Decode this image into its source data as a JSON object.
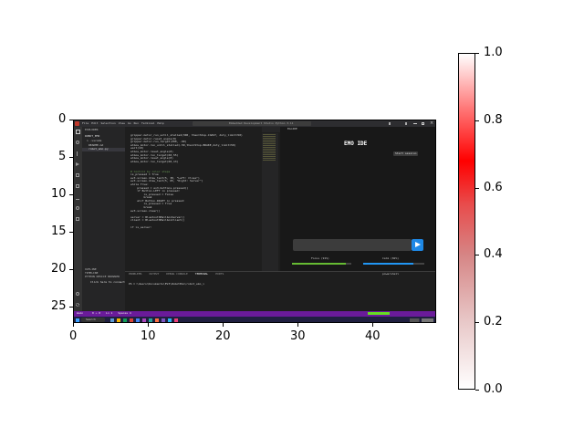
{
  "figure": {
    "x_ticks": [
      "0",
      "10",
      "20",
      "30",
      "40"
    ],
    "y_ticks": [
      "0",
      "5",
      "10",
      "15",
      "20",
      "25"
    ],
    "colorbar_ticks": [
      "0.0",
      "0.2",
      "0.4",
      "0.6",
      "0.8",
      "1.0"
    ],
    "colorbar_colors": {
      "low": "#ffffff",
      "mid": "#d68585",
      "high": "#ff0000"
    }
  },
  "screenshot": {
    "menu": [
      "File",
      "Edit",
      "Selection",
      "View",
      "Go",
      "Run",
      "Terminal",
      "Help"
    ],
    "window_title": "Embedded Development Studio Python 3.11",
    "tabs": [
      "robot_emo.py",
      "EmoIDE.py"
    ],
    "explorer_title": "EXPLORER",
    "explorer_items": [
      "ROBOT_EMO",
      "> .vscode",
      "README.md",
      "robot_emo.py"
    ],
    "explorer_sections": [
      "OUTLINE",
      "TIMELINE",
      "PYTHON DEVICE BROWSER",
      "Click here to connect..."
    ],
    "code_lines": [
      "grippar.motor_run_until_stalled(300, then=Stop.COAST, duty_limit=50)",
      "grippar.motor.reset_angle(0)",
      "grippar.motor.run_target(200, -90)",
      "elbow_motor.run_until_stalled(-50,then=Stop.BRAKE,duty_limit=50)",
      "wait(10)",
      "elbow_motor.reset_angle(0)",
      "elbow_motor.run_target(60,55)",
      "elbow_motor.reset_angle(0)",
      "elbow_motor.run_target(60,13)",
      "",
      "",
      "# Control by color steps",
      "is_pressed = True",
      "ev3.screen.draw_text(5, 30, \"Left: Close\")",
      "ev3.screen.draw_text(5, 65, \"Right: Server\")",
      "while True:",
      "    pressed = ev3.buttons.pressed()",
      "    if Button.LEFT in pressed:",
      "        is_pressed = False",
      "        break",
      "    elif Button.RIGHT in pressed:",
      "        is_pressed = True",
      "        break",
      "ev3.screen.clear()",
      "",
      "server = BluetoothMailboxServer()",
      "client = BluetoothMailboxClient()",
      "",
      "if is_server:"
    ],
    "emo_pane_tab": "EmoIDE",
    "emo_title": "EMO IDE",
    "start_button": "Start session",
    "input_placeholder": "",
    "send_icon": "send-icon",
    "focus_label": "Focus (91%)",
    "focus_value": 0.91,
    "calm_label": "Calm (82%)",
    "calm_value": 0.82,
    "terminal_tabs": [
      "PROBLEMS",
      "OUTPUT",
      "DEBUG CONSOLE",
      "TERMINAL",
      "PORTS"
    ],
    "terminal_line": "PS C:\\Users\\Documents\\EV3\\RobotEmo\\robot_emo_>",
    "terminal_shell": "powershell",
    "status_left": "main",
    "status_items": [
      "0 ⚠ 0",
      "Ln 1",
      "Spaces 4"
    ],
    "taskbar_search": "Search",
    "colors": {
      "status": "#6a1b9a",
      "focus_bar": "#66bb33",
      "calm_bar": "#2196f3",
      "send": "#1e88e5"
    }
  }
}
